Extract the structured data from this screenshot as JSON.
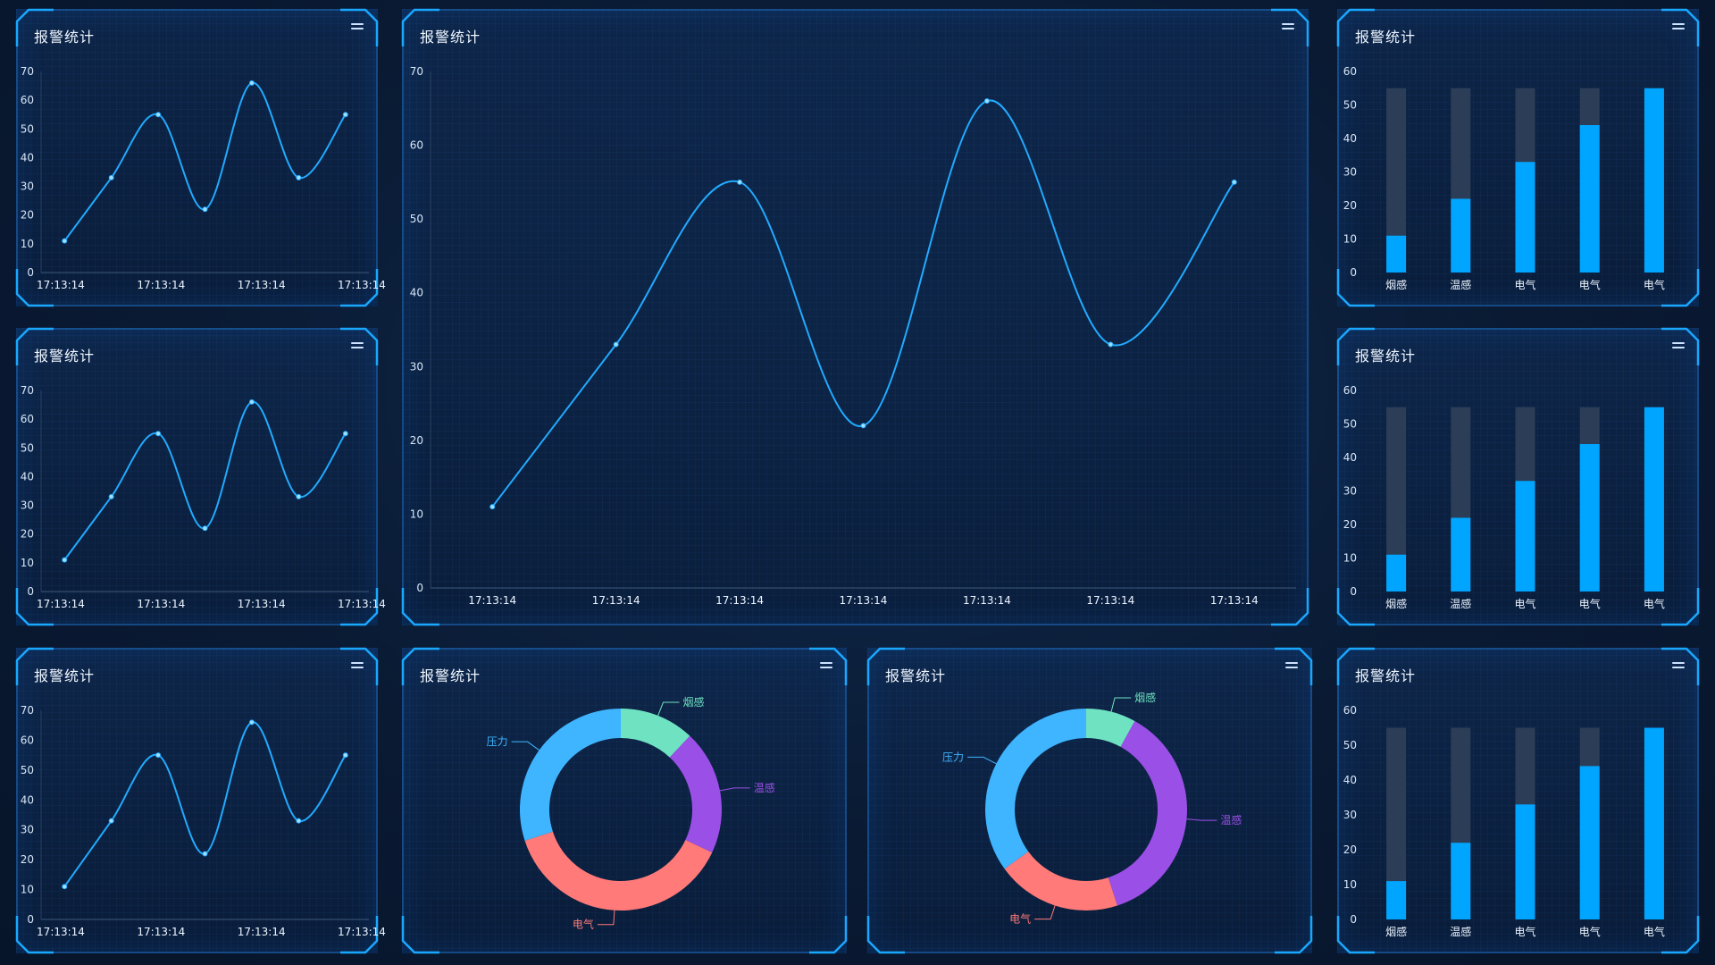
{
  "panels": {
    "p1": {
      "title": "报警统计"
    },
    "p2": {
      "title": "报警统计"
    },
    "p3": {
      "title": "报警统计"
    },
    "p4": {
      "title": "报警统计"
    },
    "p5": {
      "title": "报警统计"
    },
    "p6": {
      "title": "报警统计"
    },
    "p7": {
      "title": "报警统计"
    },
    "p8": {
      "title": "报警统计"
    },
    "p9": {
      "title": "报警统计"
    }
  },
  "colors": {
    "accent": "#1aa8ff",
    "bar_fill": "#00a5ff",
    "bar_bg": "#2c3e57",
    "smoke": "#6fe3c1",
    "temp": "#9a4fe6",
    "elec": "#ff7a78",
    "pressure": "#3fb4ff"
  },
  "chart_data": [
    {
      "id": "line-small-1",
      "type": "line",
      "categories": [
        "17:13:14",
        "17:13:14",
        "17:13:14",
        "17:13:14",
        "17:13:14",
        "17:13:14",
        "17:13:14"
      ],
      "tick_labels": [
        "17:13:14",
        "17:13:14",
        "17:13:14",
        "17:13:14"
      ],
      "values": [
        11,
        33,
        55,
        22,
        66,
        33,
        55
      ],
      "ylim": [
        0,
        70
      ],
      "yticks": [
        0,
        10,
        20,
        30,
        40,
        50,
        60,
        70
      ]
    },
    {
      "id": "line-small-2",
      "type": "line",
      "categories": [
        "17:13:14",
        "17:13:14",
        "17:13:14",
        "17:13:14",
        "17:13:14",
        "17:13:14",
        "17:13:14"
      ],
      "tick_labels": [
        "17:13:14",
        "17:13:14",
        "17:13:14",
        "17:13:14"
      ],
      "values": [
        11,
        33,
        55,
        22,
        66,
        33,
        55
      ],
      "ylim": [
        0,
        70
      ],
      "yticks": [
        0,
        10,
        20,
        30,
        40,
        50,
        60,
        70
      ]
    },
    {
      "id": "line-small-3",
      "type": "line",
      "categories": [
        "17:13:14",
        "17:13:14",
        "17:13:14",
        "17:13:14",
        "17:13:14",
        "17:13:14",
        "17:13:14"
      ],
      "tick_labels": [
        "17:13:14",
        "17:13:14",
        "17:13:14",
        "17:13:14"
      ],
      "values": [
        11,
        33,
        55,
        22,
        66,
        33,
        55
      ],
      "ylim": [
        0,
        70
      ],
      "yticks": [
        0,
        10,
        20,
        30,
        40,
        50,
        60,
        70
      ]
    },
    {
      "id": "line-large",
      "type": "line",
      "categories": [
        "17:13:14",
        "17:13:14",
        "17:13:14",
        "17:13:14",
        "17:13:14",
        "17:13:14",
        "17:13:14"
      ],
      "tick_labels": [
        "17:13:14",
        "17:13:14",
        "17:13:14",
        "17:13:14",
        "17:13:14",
        "17:13:14",
        "17:13:14"
      ],
      "values": [
        11,
        33,
        55,
        22,
        66,
        33,
        55
      ],
      "ylim": [
        0,
        70
      ],
      "yticks": [
        0,
        10,
        20,
        30,
        40,
        50,
        60,
        70
      ]
    },
    {
      "id": "bar-1",
      "type": "bar",
      "categories": [
        "烟感",
        "温感",
        "电气",
        "电气",
        "电气"
      ],
      "values": [
        11,
        22,
        33,
        44,
        55
      ],
      "max": 55,
      "ylim": [
        0,
        60
      ],
      "yticks": [
        0,
        10,
        20,
        30,
        40,
        50,
        60
      ]
    },
    {
      "id": "bar-2",
      "type": "bar",
      "categories": [
        "烟感",
        "温感",
        "电气",
        "电气",
        "电气"
      ],
      "values": [
        11,
        22,
        33,
        44,
        55
      ],
      "max": 55,
      "ylim": [
        0,
        60
      ],
      "yticks": [
        0,
        10,
        20,
        30,
        40,
        50,
        60
      ]
    },
    {
      "id": "bar-3",
      "type": "bar",
      "categories": [
        "烟感",
        "温感",
        "电气",
        "电气",
        "电气"
      ],
      "values": [
        11,
        22,
        33,
        44,
        55
      ],
      "max": 55,
      "ylim": [
        0,
        60
      ],
      "yticks": [
        0,
        10,
        20,
        30,
        40,
        50,
        60
      ]
    },
    {
      "id": "pie-1",
      "type": "pie",
      "slices": [
        {
          "label": "烟感",
          "value": 12,
          "color": "#6fe3c1"
        },
        {
          "label": "温感",
          "value": 20,
          "color": "#9a4fe6"
        },
        {
          "label": "电气",
          "value": 38,
          "color": "#ff7a78"
        },
        {
          "label": "压力",
          "value": 30,
          "color": "#3fb4ff"
        }
      ]
    },
    {
      "id": "pie-2",
      "type": "pie",
      "slices": [
        {
          "label": "烟感",
          "value": 8,
          "color": "#6fe3c1"
        },
        {
          "label": "温感",
          "value": 37,
          "color": "#9a4fe6"
        },
        {
          "label": "电气",
          "value": 20,
          "color": "#ff7a78"
        },
        {
          "label": "压力",
          "value": 35,
          "color": "#3fb4ff"
        }
      ]
    }
  ]
}
